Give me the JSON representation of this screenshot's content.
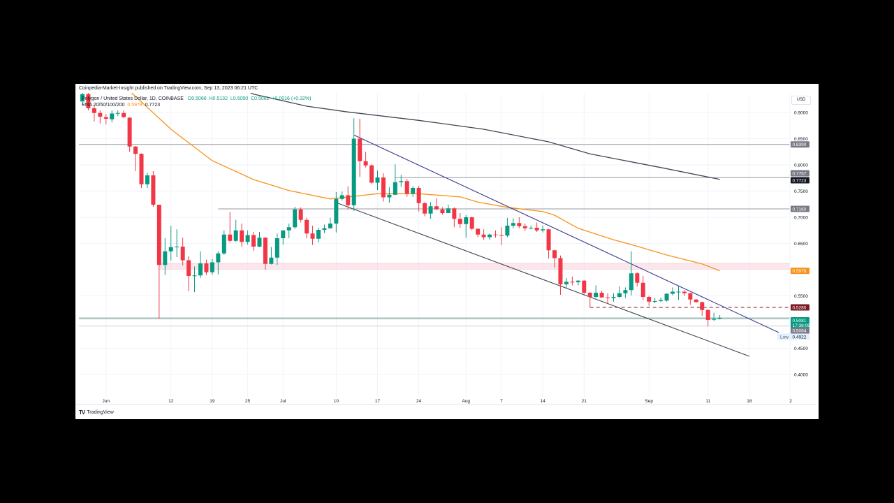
{
  "header": {
    "publisher": "Coinpedia-Market-Insight published on TradingView.com, Sep 13, 2023 06:21 UTC",
    "symbol": "Polygon / United States Dollar, 1D, COINBASE",
    "open": "O0.5066",
    "high": "H0.5132",
    "low": "L0.5050",
    "close": "C0.5081",
    "change": "+0.0016 (+0.32%)",
    "ema_label": "EMA 20/50/100/200",
    "ema50_value": "0.5978",
    "ema200_value": "0.7723"
  },
  "currency": "USD",
  "branding": {
    "logo": "TradingView"
  },
  "colors": {
    "up": "#089981",
    "down": "#f23645",
    "ema50": "#f7931a",
    "ema200": "#434651",
    "trend_upper": "#3b3b8f",
    "trend_lower": "#434651",
    "zone": "#f8d7de",
    "support_dashed": "#7b1c24"
  },
  "chart_data": {
    "type": "candlestick",
    "xlim": [
      "2023-05-28",
      "2023-09-25"
    ],
    "ylim": [
      0.38,
      0.94
    ],
    "grid": true,
    "y_ticks": [
      "0.9000",
      "0.8500",
      "0.8000",
      "0.7500",
      "0.7000",
      "0.6500",
      "0.5500",
      "0.4500",
      "0.4000"
    ],
    "x_ticks": [
      {
        "label": "Jun",
        "date": "2023-06-01"
      },
      {
        "label": "12",
        "date": "2023-06-12"
      },
      {
        "label": "19",
        "date": "2023-06-19"
      },
      {
        "label": "25",
        "date": "2023-06-25"
      },
      {
        "label": "Jul",
        "date": "2023-07-01"
      },
      {
        "label": "10",
        "date": "2023-07-10"
      },
      {
        "label": "17",
        "date": "2023-07-17"
      },
      {
        "label": "24",
        "date": "2023-07-24"
      },
      {
        "label": "Aug",
        "date": "2023-08-01"
      },
      {
        "label": "7",
        "date": "2023-08-07"
      },
      {
        "label": "14",
        "date": "2023-08-14"
      },
      {
        "label": "21",
        "date": "2023-08-21"
      },
      {
        "label": "Sep",
        "date": "2023-09-01"
      },
      {
        "label": "11",
        "date": "2023-09-11"
      },
      {
        "label": "18",
        "date": "2023-09-18"
      },
      {
        "label": "2",
        "date": "2023-09-25"
      }
    ],
    "candles_columns": [
      "date",
      "open",
      "high",
      "low",
      "close"
    ],
    "candles": [
      [
        "2023-05-28",
        0.921,
        0.941,
        0.915,
        0.935
      ],
      [
        "2023-05-29",
        0.935,
        0.941,
        0.904,
        0.908
      ],
      [
        "2023-05-30",
        0.908,
        0.915,
        0.883,
        0.899
      ],
      [
        "2023-05-31",
        0.899,
        0.904,
        0.879,
        0.892
      ],
      [
        "2023-06-01",
        0.891,
        0.897,
        0.877,
        0.888
      ],
      [
        "2023-06-02",
        0.887,
        0.904,
        0.881,
        0.898
      ],
      [
        "2023-06-03",
        0.898,
        0.904,
        0.893,
        0.899
      ],
      [
        "2023-06-04",
        0.899,
        0.904,
        0.89,
        0.891
      ],
      [
        "2023-06-05",
        0.89,
        0.891,
        0.825,
        0.835
      ],
      [
        "2023-06-06",
        0.835,
        0.836,
        0.788,
        0.821
      ],
      [
        "2023-06-07",
        0.821,
        0.822,
        0.756,
        0.763
      ],
      [
        "2023-06-08",
        0.763,
        0.785,
        0.756,
        0.78
      ],
      [
        "2023-06-09",
        0.78,
        0.788,
        0.72,
        0.724
      ],
      [
        "2023-06-10",
        0.724,
        0.724,
        0.507,
        0.609
      ],
      [
        "2023-06-11",
        0.609,
        0.66,
        0.59,
        0.635
      ],
      [
        "2023-06-12",
        0.635,
        0.684,
        0.617,
        0.643
      ],
      [
        "2023-06-13",
        0.643,
        0.677,
        0.624,
        0.644
      ],
      [
        "2023-06-14",
        0.644,
        0.661,
        0.608,
        0.618
      ],
      [
        "2023-06-15",
        0.618,
        0.626,
        0.559,
        0.588
      ],
      [
        "2023-06-16",
        0.588,
        0.606,
        0.557,
        0.589
      ],
      [
        "2023-06-17",
        0.589,
        0.635,
        0.584,
        0.612
      ],
      [
        "2023-06-18",
        0.612,
        0.619,
        0.59,
        0.595
      ],
      [
        "2023-06-19",
        0.595,
        0.621,
        0.59,
        0.614
      ],
      [
        "2023-06-20",
        0.614,
        0.635,
        0.591,
        0.631
      ],
      [
        "2023-06-21",
        0.631,
        0.675,
        0.628,
        0.667
      ],
      [
        "2023-06-22",
        0.667,
        0.71,
        0.652,
        0.655
      ],
      [
        "2023-06-23",
        0.655,
        0.695,
        0.653,
        0.675
      ],
      [
        "2023-06-24",
        0.675,
        0.688,
        0.644,
        0.653
      ],
      [
        "2023-06-25",
        0.653,
        0.675,
        0.648,
        0.666
      ],
      [
        "2023-06-26",
        0.666,
        0.672,
        0.636,
        0.644
      ],
      [
        "2023-06-27",
        0.644,
        0.672,
        0.643,
        0.661
      ],
      [
        "2023-06-28",
        0.661,
        0.662,
        0.6,
        0.611
      ],
      [
        "2023-06-29",
        0.611,
        0.643,
        0.61,
        0.623
      ],
      [
        "2023-06-30",
        0.623,
        0.669,
        0.609,
        0.66
      ],
      [
        "2023-07-01",
        0.66,
        0.675,
        0.648,
        0.675
      ],
      [
        "2023-07-02",
        0.675,
        0.688,
        0.66,
        0.681
      ],
      [
        "2023-07-03",
        0.681,
        0.72,
        0.678,
        0.715
      ],
      [
        "2023-07-04",
        0.715,
        0.719,
        0.69,
        0.695
      ],
      [
        "2023-07-05",
        0.695,
        0.699,
        0.66,
        0.669
      ],
      [
        "2023-07-06",
        0.669,
        0.684,
        0.647,
        0.659
      ],
      [
        "2023-07-07",
        0.659,
        0.68,
        0.652,
        0.676
      ],
      [
        "2023-07-08",
        0.676,
        0.686,
        0.67,
        0.679
      ],
      [
        "2023-07-09",
        0.679,
        0.699,
        0.678,
        0.688
      ],
      [
        "2023-07-10",
        0.688,
        0.748,
        0.671,
        0.735
      ],
      [
        "2023-07-11",
        0.735,
        0.749,
        0.732,
        0.742
      ],
      [
        "2023-07-12",
        0.742,
        0.759,
        0.715,
        0.723
      ],
      [
        "2023-07-13",
        0.723,
        0.889,
        0.712,
        0.85
      ],
      [
        "2023-07-14",
        0.85,
        0.888,
        0.777,
        0.807
      ],
      [
        "2023-07-15",
        0.807,
        0.825,
        0.795,
        0.799
      ],
      [
        "2023-07-16",
        0.799,
        0.801,
        0.763,
        0.766
      ],
      [
        "2023-07-17",
        0.766,
        0.789,
        0.752,
        0.776
      ],
      [
        "2023-07-18",
        0.776,
        0.784,
        0.73,
        0.738
      ],
      [
        "2023-07-19",
        0.738,
        0.757,
        0.728,
        0.743
      ],
      [
        "2023-07-20",
        0.743,
        0.801,
        0.742,
        0.767
      ],
      [
        "2023-07-21",
        0.767,
        0.781,
        0.758,
        0.769
      ],
      [
        "2023-07-22",
        0.769,
        0.773,
        0.739,
        0.745
      ],
      [
        "2023-07-23",
        0.745,
        0.759,
        0.739,
        0.756
      ],
      [
        "2023-07-24",
        0.756,
        0.76,
        0.711,
        0.727
      ],
      [
        "2023-07-25",
        0.727,
        0.729,
        0.702,
        0.707
      ],
      [
        "2023-07-26",
        0.707,
        0.729,
        0.697,
        0.721
      ],
      [
        "2023-07-27",
        0.721,
        0.736,
        0.714,
        0.715
      ],
      [
        "2023-07-28",
        0.715,
        0.719,
        0.705,
        0.708
      ],
      [
        "2023-07-29",
        0.708,
        0.724,
        0.708,
        0.717
      ],
      [
        "2023-07-30",
        0.717,
        0.719,
        0.681,
        0.697
      ],
      [
        "2023-07-31",
        0.697,
        0.708,
        0.68,
        0.687
      ],
      [
        "2023-08-01",
        0.687,
        0.704,
        0.661,
        0.7
      ],
      [
        "2023-08-02",
        0.7,
        0.701,
        0.675,
        0.678
      ],
      [
        "2023-08-03",
        0.678,
        0.679,
        0.662,
        0.667
      ],
      [
        "2023-08-04",
        0.667,
        0.677,
        0.657,
        0.662
      ],
      [
        "2023-08-05",
        0.662,
        0.669,
        0.657,
        0.667
      ],
      [
        "2023-08-06",
        0.667,
        0.675,
        0.661,
        0.666
      ],
      [
        "2023-08-07",
        0.666,
        0.681,
        0.647,
        0.665
      ],
      [
        "2023-08-08",
        0.665,
        0.699,
        0.662,
        0.684
      ],
      [
        "2023-08-09",
        0.684,
        0.698,
        0.679,
        0.689
      ],
      [
        "2023-08-10",
        0.689,
        0.7,
        0.679,
        0.683
      ],
      [
        "2023-08-11",
        0.683,
        0.688,
        0.674,
        0.679
      ],
      [
        "2023-08-12",
        0.679,
        0.684,
        0.677,
        0.68
      ],
      [
        "2023-08-13",
        0.68,
        0.69,
        0.672,
        0.675
      ],
      [
        "2023-08-14",
        0.675,
        0.684,
        0.671,
        0.677
      ],
      [
        "2023-08-15",
        0.677,
        0.678,
        0.621,
        0.637
      ],
      [
        "2023-08-16",
        0.637,
        0.638,
        0.604,
        0.622
      ],
      [
        "2023-08-17",
        0.622,
        0.627,
        0.552,
        0.572
      ],
      [
        "2023-08-18",
        0.572,
        0.584,
        0.565,
        0.577
      ],
      [
        "2023-08-19",
        0.577,
        0.587,
        0.57,
        0.576
      ],
      [
        "2023-08-20",
        0.576,
        0.58,
        0.57,
        0.579
      ],
      [
        "2023-08-21",
        0.579,
        0.58,
        0.552,
        0.556
      ],
      [
        "2023-08-22",
        0.556,
        0.557,
        0.528,
        0.548
      ],
      [
        "2023-08-23",
        0.548,
        0.57,
        0.546,
        0.556
      ],
      [
        "2023-08-24",
        0.556,
        0.56,
        0.546,
        0.547
      ],
      [
        "2023-08-25",
        0.547,
        0.555,
        0.535,
        0.546
      ],
      [
        "2023-08-26",
        0.546,
        0.555,
        0.539,
        0.548
      ],
      [
        "2023-08-27",
        0.548,
        0.568,
        0.546,
        0.555
      ],
      [
        "2023-08-28",
        0.555,
        0.566,
        0.546,
        0.561
      ],
      [
        "2023-08-29",
        0.561,
        0.635,
        0.551,
        0.593
      ],
      [
        "2023-08-30",
        0.593,
        0.595,
        0.568,
        0.575
      ],
      [
        "2023-08-31",
        0.575,
        0.588,
        0.542,
        0.548
      ],
      [
        "2023-09-01",
        0.548,
        0.55,
        0.531,
        0.539
      ],
      [
        "2023-09-02",
        0.539,
        0.546,
        0.536,
        0.54
      ],
      [
        "2023-09-03",
        0.54,
        0.547,
        0.538,
        0.542
      ],
      [
        "2023-09-04",
        0.541,
        0.555,
        0.539,
        0.554
      ],
      [
        "2023-09-05",
        0.554,
        0.566,
        0.551,
        0.558
      ],
      [
        "2023-09-06",
        0.558,
        0.569,
        0.542,
        0.558
      ],
      [
        "2023-09-07",
        0.558,
        0.561,
        0.55,
        0.555
      ],
      [
        "2023-09-08",
        0.555,
        0.556,
        0.533,
        0.543
      ],
      [
        "2023-09-09",
        0.543,
        0.544,
        0.537,
        0.538
      ],
      [
        "2023-09-10",
        0.538,
        0.539,
        0.512,
        0.523
      ],
      [
        "2023-09-11",
        0.523,
        0.524,
        0.4922,
        0.504
      ],
      [
        "2023-09-12",
        0.5045,
        0.518,
        0.502,
        0.5066
      ],
      [
        "2023-09-13",
        0.5066,
        0.5132,
        0.505,
        0.5081
      ]
    ],
    "ema50": [
      [
        "2023-06-05",
        0.941
      ],
      [
        "2023-06-12",
        0.868
      ],
      [
        "2023-06-19",
        0.808
      ],
      [
        "2023-06-26",
        0.772
      ],
      [
        "2023-07-02",
        0.751
      ],
      [
        "2023-07-09",
        0.735
      ],
      [
        "2023-07-17",
        0.745
      ],
      [
        "2023-07-24",
        0.745
      ],
      [
        "2023-07-31",
        0.739
      ],
      [
        "2023-08-03",
        0.729
      ],
      [
        "2023-08-08",
        0.719
      ],
      [
        "2023-08-14",
        0.711
      ],
      [
        "2023-08-16",
        0.704
      ],
      [
        "2023-08-20",
        0.679
      ],
      [
        "2023-08-26",
        0.657
      ],
      [
        "2023-08-29",
        0.648
      ],
      [
        "2023-09-04",
        0.628
      ],
      [
        "2023-09-10",
        0.611
      ],
      [
        "2023-09-13",
        0.5978
      ]
    ],
    "ema200": [
      [
        "2023-06-26",
        0.935
      ],
      [
        "2023-07-05",
        0.912
      ],
      [
        "2023-07-12",
        0.901
      ],
      [
        "2023-07-24",
        0.885
      ],
      [
        "2023-08-04",
        0.868
      ],
      [
        "2023-08-15",
        0.844
      ],
      [
        "2023-08-22",
        0.821
      ],
      [
        "2023-09-03",
        0.795
      ],
      [
        "2023-09-13",
        0.7723
      ]
    ],
    "trendlines": [
      {
        "from": [
          "2023-07-13",
          0.857
        ],
        "to": [
          "2023-09-23",
          0.48
        ],
        "style": "upper"
      },
      {
        "from": [
          "2023-07-10",
          0.728
        ],
        "to": [
          "2023-09-18",
          0.4347
        ],
        "style": "lower"
      }
    ],
    "levels": [
      {
        "price": 0.839,
        "from": "2023-05-26",
        "style": "solid"
      },
      {
        "price": 0.7757,
        "from": "2023-07-20",
        "style": "solid"
      },
      {
        "price": 0.716,
        "from": "2023-06-20",
        "style": "solid"
      },
      {
        "price": 0.528,
        "from": "2023-08-22",
        "style": "dashed"
      },
      {
        "price": 0.5064,
        "from": "2023-05-26",
        "style": "solid"
      },
      {
        "price": 0.4922,
        "from": "2023-05-26",
        "style": "dotted"
      }
    ],
    "zone": {
      "top": 0.612,
      "bottom": 0.601,
      "from": "2023-06-10"
    },
    "price_labels": [
      {
        "text": "0.8390",
        "price": 0.839,
        "bg": "#787b86",
        "fg": "#ffffff"
      },
      {
        "text": "0.7757",
        "price": 0.7757,
        "bg": "#787b86",
        "fg": "#ffffff"
      },
      {
        "text": "0.7723",
        "price": 0.7723,
        "bg": "#131722",
        "fg": "#ffffff"
      },
      {
        "text": "0.7160",
        "price": 0.716,
        "bg": "#787b86",
        "fg": "#ffffff"
      },
      {
        "text": "0.5978",
        "price": 0.5978,
        "bg": "#f7931a",
        "fg": "#ffffff"
      },
      {
        "text": "0.5280",
        "price": 0.528,
        "bg": "#7b1c24",
        "fg": "#ffffff"
      },
      {
        "text": "0.5081",
        "sub": "17:38:09",
        "price": 0.5081,
        "bg": "#089981",
        "fg": "#ffffff"
      },
      {
        "text": "0.5064",
        "price": 0.5064,
        "bg": "#787b86",
        "fg": "#ffffff"
      },
      {
        "text": "0.4922",
        "tag": "Low",
        "price": 0.4922,
        "bg": "#e3effd",
        "fg": "#131722"
      }
    ]
  }
}
